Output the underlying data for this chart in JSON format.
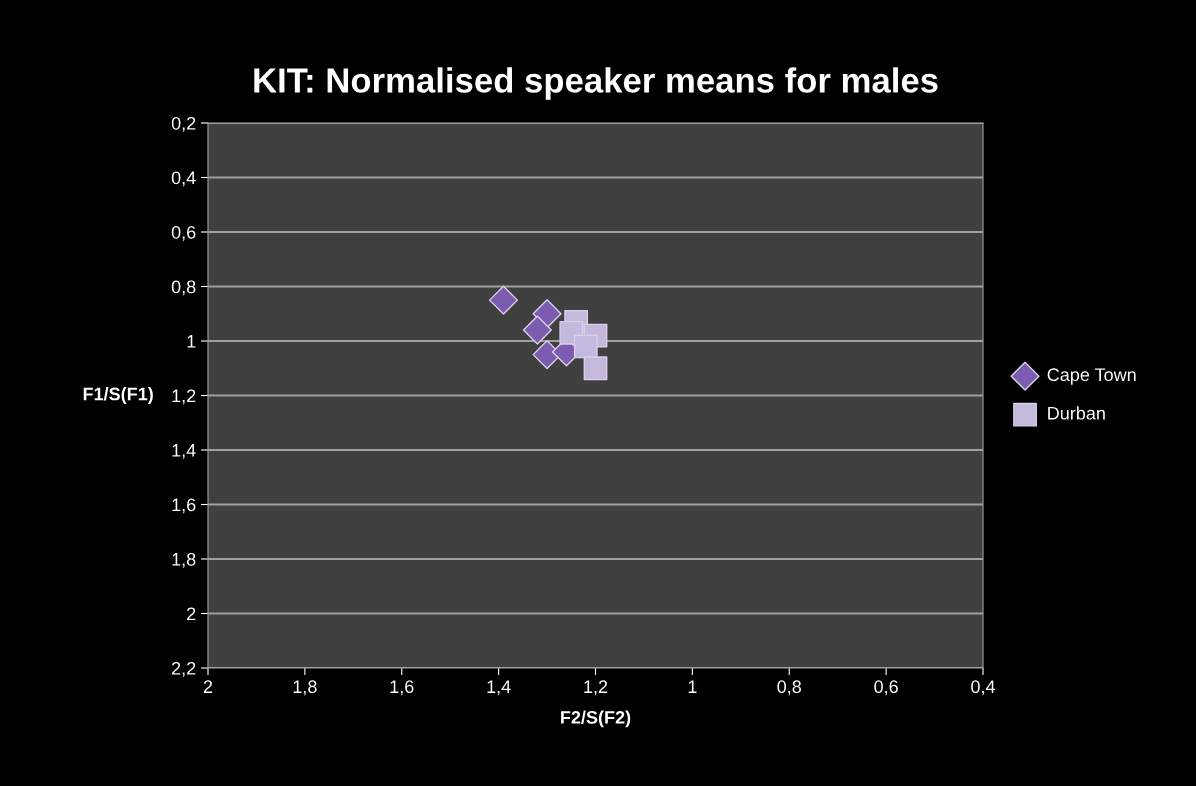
{
  "chart_data": {
    "type": "scatter",
    "title": "KIT: Normalised speaker means for males",
    "xlabel": "F2/S(F2)",
    "ylabel": "F1/S(F1)",
    "xlim": [
      2,
      0.4
    ],
    "xticks": [
      {
        "value": 2,
        "label": "2"
      },
      {
        "value": 1.8,
        "label": "1,8"
      },
      {
        "value": 1.6,
        "label": "1,6"
      },
      {
        "value": 1.4,
        "label": "1,4"
      },
      {
        "value": 1.2,
        "label": "1,2"
      },
      {
        "value": 1,
        "label": "1"
      },
      {
        "value": 0.8,
        "label": "0,8"
      },
      {
        "value": 0.6,
        "label": "0,6"
      },
      {
        "value": 0.4,
        "label": "0,4"
      }
    ],
    "ylim": [
      2.2,
      0.2
    ],
    "yticks": [
      {
        "value": 0.2,
        "label": "0,2"
      },
      {
        "value": 0.4,
        "label": "0,4"
      },
      {
        "value": 0.6,
        "label": "0,6"
      },
      {
        "value": 0.8,
        "label": "0,8"
      },
      {
        "value": 1,
        "label": "1"
      },
      {
        "value": 1.2,
        "label": "1,2"
      },
      {
        "value": 1.4,
        "label": "1,4"
      },
      {
        "value": 1.6,
        "label": "1,6"
      },
      {
        "value": 1.8,
        "label": "1,8"
      },
      {
        "value": 2,
        "label": "2"
      },
      {
        "value": 2.2,
        "label": "2,2"
      }
    ],
    "grid": "y",
    "legend": "right",
    "series": [
      {
        "name": "Cape Town",
        "color": "#7b5cb0",
        "marker": "diamond",
        "x": [
          1.39,
          1.3,
          1.32,
          1.3,
          1.26
        ],
        "values": [
          0.85,
          0.9,
          0.96,
          1.05,
          1.04
        ]
      },
      {
        "name": "Durban",
        "color": "#c4b8dc",
        "marker": "square",
        "x": [
          1.24,
          1.25,
          1.2,
          1.22,
          1.2
        ],
        "values": [
          0.93,
          0.97,
          0.98,
          1.02,
          1.1
        ]
      }
    ]
  }
}
